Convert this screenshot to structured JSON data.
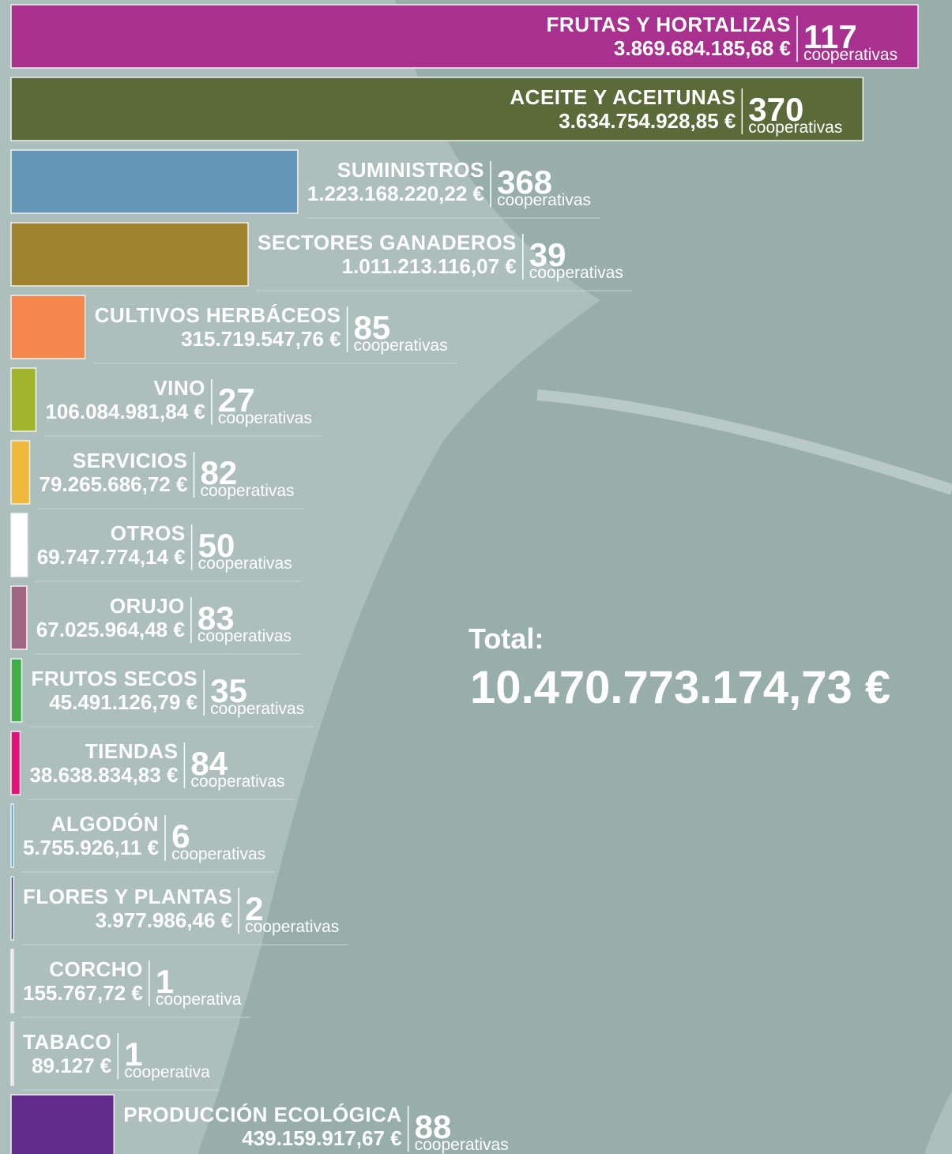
{
  "chart_data": {
    "type": "bar",
    "orientation": "horizontal",
    "categories": [
      "FRUTAS Y HORTALIZAS",
      "ACEITE Y ACEITUNAS",
      "SUMINISTROS",
      "SECTORES GANADEROS",
      "CULTIVOS HERBÁCEOS",
      "VINO",
      "SERVICIOS",
      "OTROS",
      "ORUJO",
      "FRUTOS SECOS",
      "TIENDAS",
      "ALGODÓN",
      "FLORES Y PLANTAS",
      "CORCHO",
      "TABACO",
      "PRODUCCIÓN ECOLÓGICA"
    ],
    "values": [
      3869684185.68,
      3634754928.85,
      1223168220.22,
      1011213116.07,
      315719547.76,
      106084981.84,
      79265686.72,
      69747774.14,
      67025964.48,
      45491126.79,
      38638834.83,
      5755926.11,
      3977986.46,
      155767.72,
      89127,
      439159917.67
    ],
    "value_labels": [
      "3.869.684.185,68 €",
      "3.634.754.928,85 €",
      "1.223.168.220,22 €",
      "1.011.213.116,07 €",
      "315.719.547,76 €",
      "106.084.981,84 €",
      "79.265.686,72 €",
      "69.747.774,14 €",
      "67.025.964,48 €",
      "45.491.126,79 €",
      "38.638.834,83 €",
      "5.755.926,11 €",
      "3.977.986,46 €",
      "155.767,72 €",
      "89.127 €",
      "439.159.917,67 €"
    ],
    "cooperatives": [
      117,
      370,
      368,
      39,
      85,
      27,
      82,
      50,
      83,
      35,
      84,
      6,
      2,
      1,
      1,
      88
    ],
    "cooperatives_units": [
      "cooperativas",
      "cooperativas",
      "cooperativas",
      "cooperativas",
      "cooperativas",
      "cooperativas",
      "cooperativas",
      "cooperativas",
      "cooperativas",
      "cooperativas",
      "cooperativas",
      "cooperativas",
      "cooperativas",
      "cooperativa",
      "cooperativa",
      "cooperativas"
    ],
    "colors": [
      "#a8318f",
      "#5a6b39",
      "#6597b8",
      "#9f832e",
      "#f4874e",
      "#a1b52c",
      "#efb93d",
      "#ffffff",
      "#a06684",
      "#3fae4a",
      "#e5127d",
      "#1ba9e1",
      "#2e3789",
      "#e4e4e4",
      "#e4e4e4",
      "#622b8c"
    ],
    "total_label": "Total:",
    "total": 10470773174.73,
    "total_value_label": "10.470.773.174,73 €"
  }
}
